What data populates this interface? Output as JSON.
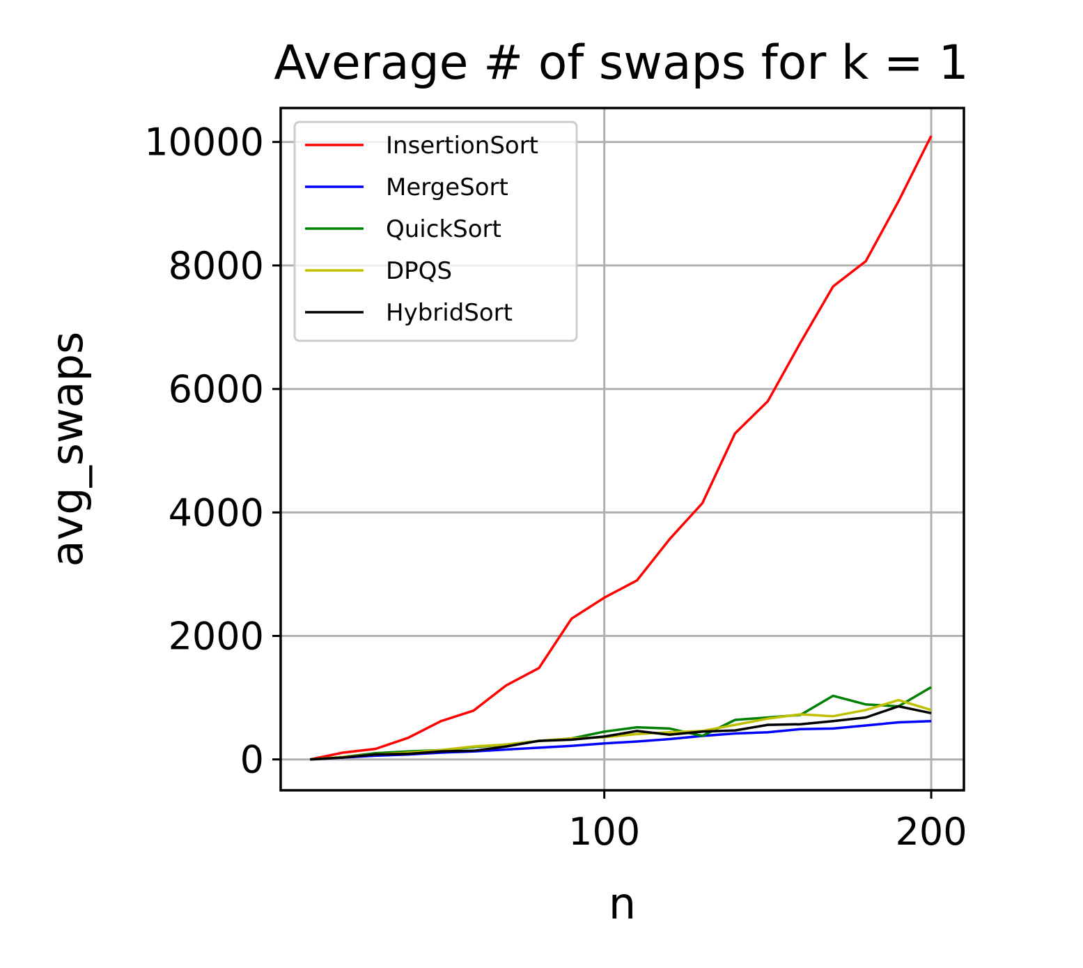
{
  "chart_data": {
    "type": "line",
    "title": "Average # of swaps for k = 1",
    "xlabel": "n",
    "ylabel": "avg_swaps",
    "xlim": [
      1,
      210
    ],
    "ylim": [
      -500,
      10550
    ],
    "xticks": [
      100,
      200
    ],
    "yticks": [
      0,
      2000,
      4000,
      6000,
      8000,
      10000
    ],
    "grid": true,
    "legend_position": "upper-left",
    "x": [
      10,
      20,
      30,
      40,
      50,
      60,
      70,
      80,
      90,
      100,
      110,
      120,
      130,
      140,
      150,
      160,
      170,
      180,
      190,
      200
    ],
    "series": [
      {
        "name": "InsertionSort",
        "color": "#ff0000",
        "values": [
          0,
          110,
          170,
          350,
          620,
          790,
          1200,
          1480,
          2280,
          2620,
          2900,
          3570,
          4150,
          5280,
          5800,
          6750,
          7660,
          8070,
          9040,
          10100
        ]
      },
      {
        "name": "MergeSort",
        "color": "#0000ff",
        "values": [
          0,
          30,
          60,
          80,
          110,
          130,
          160,
          190,
          220,
          260,
          290,
          330,
          380,
          420,
          440,
          490,
          500,
          550,
          600,
          620
        ]
      },
      {
        "name": "QuickSort",
        "color": "#008000",
        "values": [
          0,
          40,
          100,
          130,
          150,
          200,
          240,
          300,
          340,
          450,
          520,
          500,
          380,
          640,
          680,
          720,
          1030,
          890,
          860,
          1170
        ]
      },
      {
        "name": "DPQS",
        "color": "#bfbf00",
        "values": [
          0,
          40,
          80,
          110,
          150,
          210,
          240,
          300,
          340,
          360,
          410,
          440,
          460,
          560,
          660,
          730,
          700,
          800,
          960,
          800
        ]
      },
      {
        "name": "HybridSort",
        "color": "#000000",
        "values": [
          0,
          30,
          80,
          90,
          130,
          140,
          210,
          300,
          320,
          370,
          460,
          400,
          450,
          470,
          560,
          570,
          620,
          680,
          860,
          750
        ]
      }
    ]
  }
}
